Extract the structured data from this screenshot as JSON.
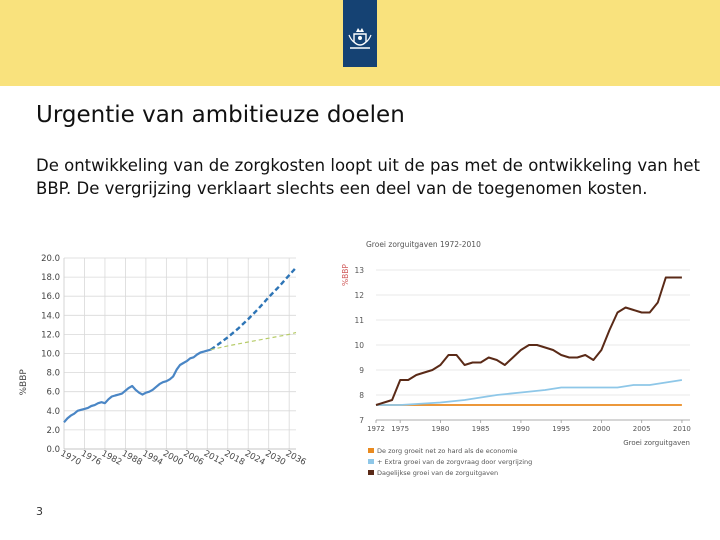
{
  "slide": {
    "title": "Urgentie van ambitieuze doelen",
    "body": "De ontwikkeling van de zorgkosten loopt uit de pas met de ontwikkeling van het BBP. De vergrijzing verklaart slechts een deel van de toegenomen kosten.",
    "page_number": "3"
  },
  "colors": {
    "header": "#f9e27d",
    "logo_bg": "#154273",
    "left_series": "#4a86c5",
    "left_projection": "#2e75b6",
    "left_alt": "#b7cc6a",
    "right_total": "#5a2a17",
    "right_aging": "#8ec7e8",
    "right_economy": "#e98a1f"
  },
  "chart_data": [
    {
      "type": "line",
      "title": "",
      "xlabel": "",
      "ylabel": "%BBP",
      "ylim": [
        0,
        20
      ],
      "yticks": [
        "0.0",
        "2.0",
        "4.0",
        "6.0",
        "8.0",
        "10.0",
        "12.0",
        "14.0",
        "16.0",
        "18.0",
        "20.0"
      ],
      "xtick_labels": [
        "1970",
        "1976",
        "1982",
        "1988",
        "1994",
        "2000",
        "2006",
        "2012",
        "2018",
        "2024",
        "2030",
        "2036"
      ],
      "grid": true,
      "series": [
        {
          "style": "solid",
          "x": [
            1970,
            1971,
            1972,
            1973,
            1974,
            1975,
            1976,
            1977,
            1978,
            1979,
            1980,
            1981,
            1982,
            1983,
            1984,
            1985,
            1986,
            1987,
            1988,
            1989,
            1990,
            1991,
            1992,
            1993,
            1994,
            1995,
            1996,
            1997,
            1998,
            1999,
            2000,
            2001,
            2002,
            2003,
            2004,
            2005,
            2006,
            2007,
            2008,
            2009,
            2010,
            2011,
            2012,
            2013
          ],
          "y": [
            2.8,
            3.2,
            3.5,
            3.7,
            4.0,
            4.1,
            4.2,
            4.3,
            4.5,
            4.6,
            4.8,
            4.9,
            4.8,
            5.2,
            5.5,
            5.6,
            5.7,
            5.8,
            6.1,
            6.4,
            6.6,
            6.2,
            5.9,
            5.7,
            5.9,
            6.0,
            6.2,
            6.5,
            6.8,
            7.0,
            7.1,
            7.3,
            7.6,
            8.3,
            8.8,
            9.0,
            9.2,
            9.5,
            9.6,
            9.9,
            10.1,
            10.2,
            10.3,
            10.4
          ]
        },
        {
          "style": "dashed",
          "x": [
            2013,
            2015,
            2018,
            2021,
            2024,
            2027,
            2030,
            2033,
            2036,
            2038
          ],
          "y": [
            10.4,
            10.9,
            11.7,
            12.6,
            13.6,
            14.7,
            15.9,
            17.0,
            18.2,
            19.0
          ]
        },
        {
          "style": "dashed-thin",
          "x": [
            2013,
            2018,
            2024,
            2030,
            2036,
            2038
          ],
          "y": [
            10.4,
            10.8,
            11.2,
            11.6,
            12.0,
            12.2
          ]
        }
      ]
    },
    {
      "type": "line",
      "title": "Groei zorguitgaven 1972-2010",
      "xlabel": "Groei zorguitgaven",
      "ylabel": "%BBP",
      "ylim": [
        7,
        13
      ],
      "yticks": [
        "7",
        "8",
        "9",
        "10",
        "11",
        "12",
        "13"
      ],
      "xtick_labels": [
        "1972",
        "1975",
        "1980",
        "1985",
        "1990",
        "1995",
        "2000",
        "2005",
        "2010"
      ],
      "grid": true,
      "legend_position": "bottom",
      "series": [
        {
          "name": "Dagelijkse groei van de zorguitgaven",
          "x": [
            1972,
            1973,
            1974,
            1975,
            1976,
            1977,
            1978,
            1979,
            1980,
            1981,
            1982,
            1983,
            1984,
            1985,
            1986,
            1987,
            1988,
            1989,
            1990,
            1991,
            1992,
            1993,
            1994,
            1995,
            1996,
            1997,
            1998,
            1999,
            2000,
            2001,
            2002,
            2003,
            2004,
            2005,
            2006,
            2007,
            2008,
            2009,
            2010
          ],
          "y": [
            7.6,
            7.7,
            7.8,
            8.6,
            8.6,
            8.8,
            8.9,
            9.0,
            9.2,
            9.6,
            9.6,
            9.2,
            9.3,
            9.3,
            9.5,
            9.4,
            9.2,
            9.5,
            9.8,
            10.0,
            10.0,
            9.9,
            9.8,
            9.6,
            9.5,
            9.5,
            9.6,
            9.4,
            9.8,
            10.6,
            11.3,
            11.5,
            11.4,
            11.3,
            11.3,
            11.7,
            12.7,
            12.7,
            12.7
          ]
        },
        {
          "name": "+ Extra groei van de zorgvraag door vergrijzing",
          "x": [
            1972,
            1975,
            1980,
            1983,
            1985,
            1987,
            1990,
            1993,
            1995,
            1998,
            2000,
            2002,
            2004,
            2005,
            2006,
            2008,
            2010
          ],
          "y": [
            7.6,
            7.6,
            7.7,
            7.8,
            7.9,
            8.0,
            8.1,
            8.2,
            8.3,
            8.3,
            8.3,
            8.3,
            8.4,
            8.4,
            8.4,
            8.5,
            8.6
          ]
        },
        {
          "name": "De zorg groeit net zo hard als de economie",
          "x": [
            1972,
            2010
          ],
          "y": [
            7.6,
            7.6
          ]
        }
      ]
    }
  ]
}
